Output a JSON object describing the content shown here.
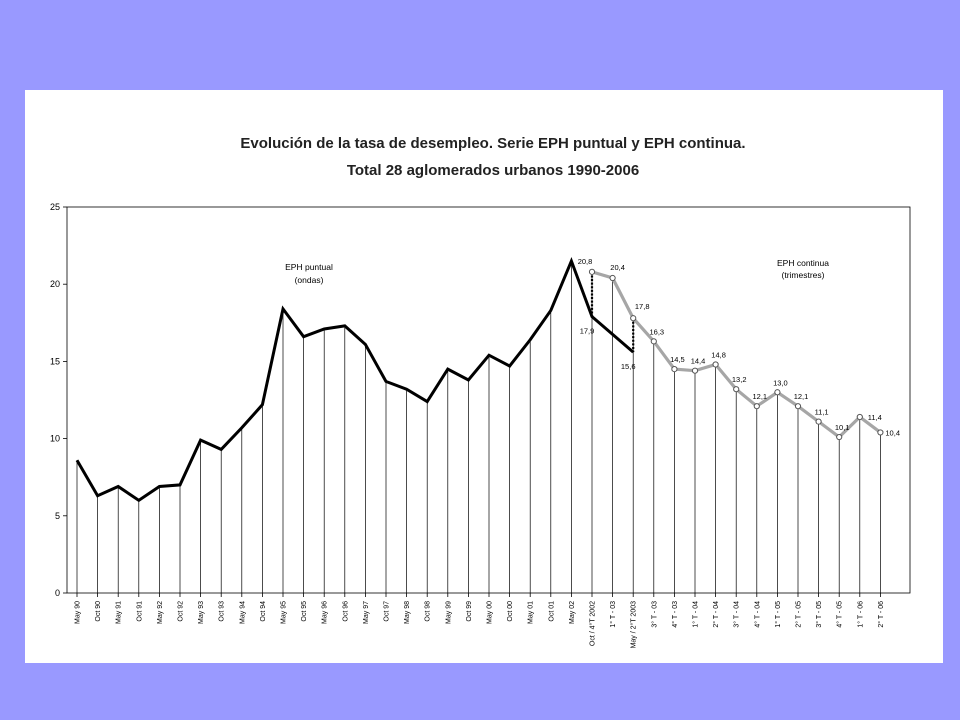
{
  "chart_data": {
    "type": "line",
    "title_line1": "Evolución de la tasa de desempleo. Serie EPH puntual y EPH continua.",
    "title_line2": "Total 28 aglomerados urbanos 1990-2006",
    "ylim": [
      0,
      25
    ],
    "yticks": [
      0,
      5,
      10,
      15,
      20,
      25
    ],
    "categories": [
      "May 90",
      "Oct 90",
      "May 91",
      "Oct 91",
      "May 92",
      "Oct 92",
      "May 93",
      "Oct 93",
      "May 94",
      "Oct 94",
      "May 95",
      "Oct 95",
      "May 96",
      "Oct 96",
      "May 97",
      "Oct 97",
      "May 98",
      "Oct 98",
      "May 99",
      "Oct 99",
      "May 00",
      "Oct 00",
      "May 01",
      "Oct 01",
      "May 02",
      "Oct / 4°T 2002",
      "1° T - 03",
      "May / 2°T 2003",
      "3° T - 03",
      "4° T - 03",
      "1° T - 04",
      "2° T - 04",
      "3° T - 04",
      "4° T - 04",
      "1° T - 05",
      "2° T - 05",
      "3° T - 05",
      "4° T - 05",
      "1° T - 06",
      "2° T - 06"
    ],
    "series": [
      {
        "name": "EPH puntual",
        "name_line1": "EPH puntual",
        "name_line2": "(ondas)",
        "color": "#000000",
        "points": [
          {
            "x": "May 90",
            "y": 8.6
          },
          {
            "x": "Oct 90",
            "y": 6.3
          },
          {
            "x": "May 91",
            "y": 6.9
          },
          {
            "x": "Oct 91",
            "y": 6.0
          },
          {
            "x": "May 92",
            "y": 6.9
          },
          {
            "x": "Oct 92",
            "y": 7.0
          },
          {
            "x": "May 93",
            "y": 9.9
          },
          {
            "x": "Oct 93",
            "y": 9.3
          },
          {
            "x": "May 94",
            "y": 10.7
          },
          {
            "x": "Oct 94",
            "y": 12.2
          },
          {
            "x": "May 95",
            "y": 18.4
          },
          {
            "x": "Oct 95",
            "y": 16.6
          },
          {
            "x": "May 96",
            "y": 17.1
          },
          {
            "x": "Oct 96",
            "y": 17.3
          },
          {
            "x": "May 97",
            "y": 16.1
          },
          {
            "x": "Oct 97",
            "y": 13.7
          },
          {
            "x": "May 98",
            "y": 13.2
          },
          {
            "x": "Oct 98",
            "y": 12.4
          },
          {
            "x": "May 99",
            "y": 14.5
          },
          {
            "x": "Oct 99",
            "y": 13.8
          },
          {
            "x": "May 00",
            "y": 15.4
          },
          {
            "x": "Oct 00",
            "y": 14.7
          },
          {
            "x": "May 01",
            "y": 16.4
          },
          {
            "x": "Oct 01",
            "y": 18.3
          },
          {
            "x": "May 02",
            "y": 21.5
          },
          {
            "x": "Oct / 4°T 2002",
            "y": 17.9,
            "label": "17,9"
          },
          {
            "x": "May / 2°T 2003",
            "y": 15.6,
            "label": "15,6"
          }
        ]
      },
      {
        "name": "EPH continua",
        "name_line1": "EPH continua",
        "name_line2": "(trimestres)",
        "color": "#a6a6a6",
        "points": [
          {
            "x": "Oct / 4°T 2002",
            "y": 20.8,
            "label": "20,8"
          },
          {
            "x": "1° T - 03",
            "y": 20.4,
            "label": "20,4"
          },
          {
            "x": "May / 2°T 2003",
            "y": 17.8,
            "label": "17,8"
          },
          {
            "x": "3° T - 03",
            "y": 16.3,
            "label": "16,3"
          },
          {
            "x": "4° T - 03",
            "y": 14.5,
            "label": "14,5"
          },
          {
            "x": "1° T - 04",
            "y": 14.4,
            "label": "14,4"
          },
          {
            "x": "2° T - 04",
            "y": 14.8,
            "label": "14,8"
          },
          {
            "x": "3° T - 04",
            "y": 13.2,
            "label": "13,2"
          },
          {
            "x": "4° T - 04",
            "y": 12.1,
            "label": "12,1"
          },
          {
            "x": "1° T - 05",
            "y": 13.0,
            "label": "13,0"
          },
          {
            "x": "2° T - 05",
            "y": 12.1,
            "label": "12,1"
          },
          {
            "x": "3° T - 05",
            "y": 11.1,
            "label": "11,1"
          },
          {
            "x": "4° T - 05",
            "y": 10.1,
            "label": "10,1"
          },
          {
            "x": "1° T - 06",
            "y": 11.4,
            "label": "11,4"
          },
          {
            "x": "2° T - 06",
            "y": 10.4,
            "label": "10,4"
          }
        ]
      }
    ],
    "links": [
      {
        "x": "Oct / 4°T 2002",
        "from": 20.8,
        "to": 17.9
      },
      {
        "x": "May / 2°T 2003",
        "from": 17.8,
        "to": 15.6
      }
    ],
    "grid": false,
    "legend": "inline-annotations"
  }
}
